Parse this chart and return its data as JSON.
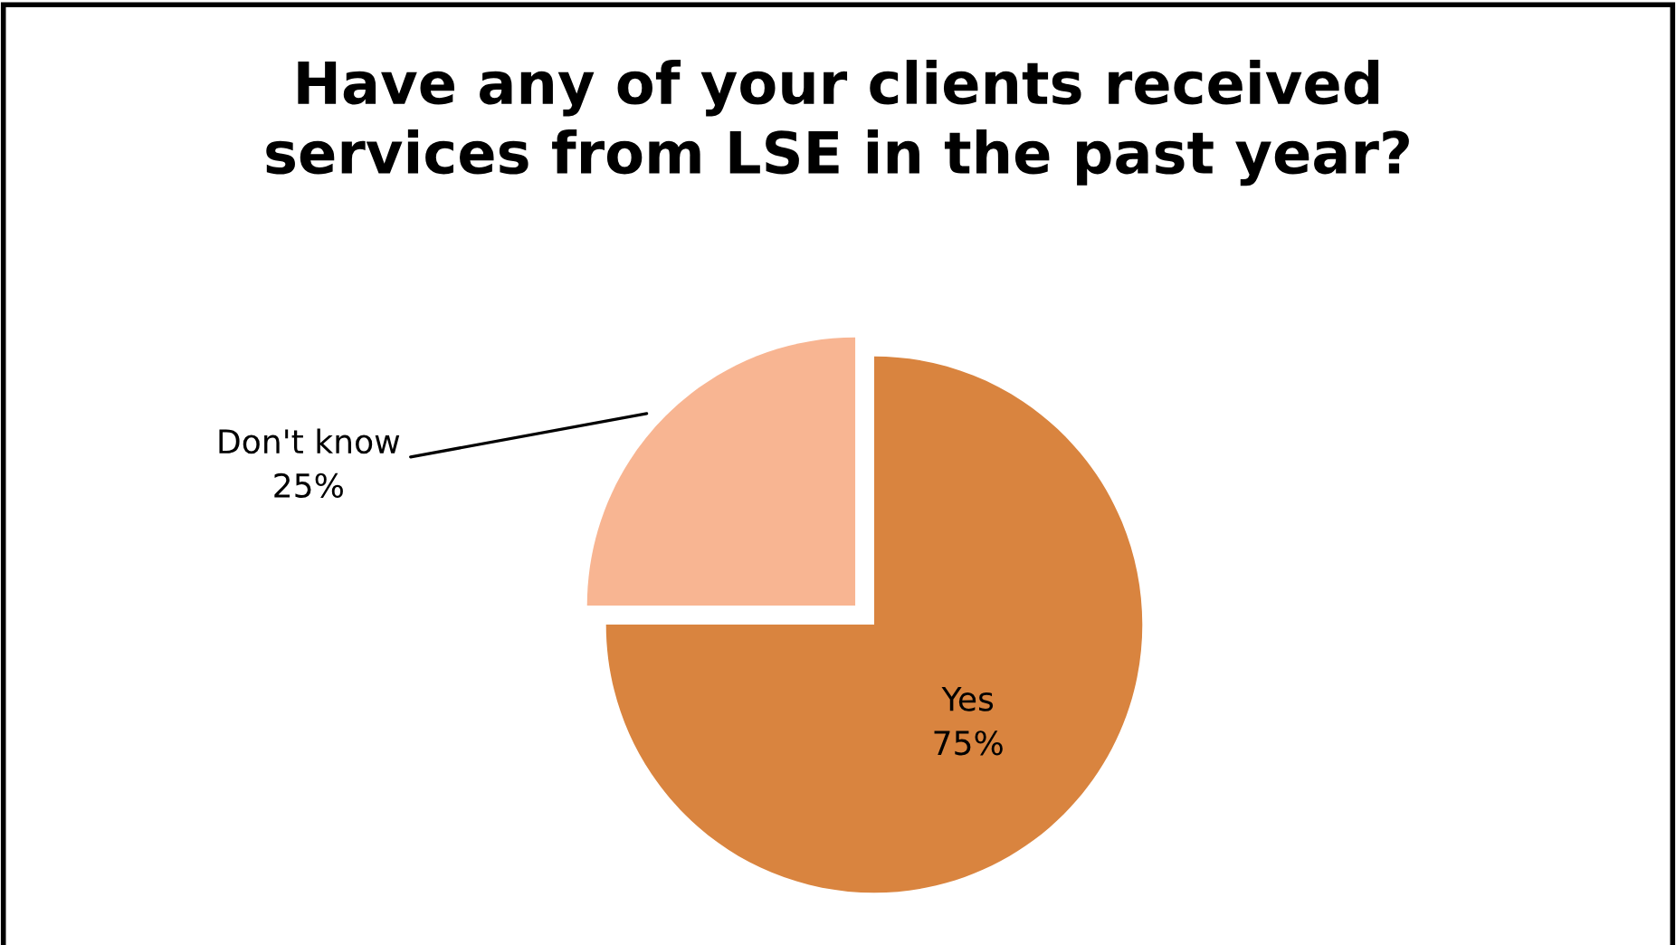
{
  "chart_data": {
    "type": "pie",
    "title": "Have any of your clients received\nservices from LSE in the past year?",
    "categories": [
      "Yes",
      "Don't know"
    ],
    "values": [
      75,
      25
    ],
    "value_labels": [
      "75%",
      "25%"
    ],
    "colors": [
      "#d9843f",
      "#f8b592"
    ]
  }
}
